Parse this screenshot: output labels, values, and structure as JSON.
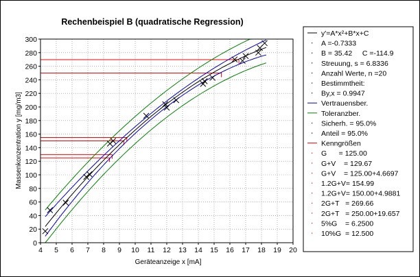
{
  "chart_data": {
    "type": "scatter",
    "title": "Rechenbeispiel B (quadratische Regression)",
    "xlabel": "Geräteanzeige x [mA]",
    "ylabel": "Massenkonzentration y [mg/m3]",
    "xlim": [
      4,
      20
    ],
    "ylim": [
      0,
      300
    ],
    "xticks": [
      4,
      5,
      6,
      7,
      8,
      9,
      10,
      11,
      12,
      13,
      14,
      15,
      16,
      17,
      18,
      19,
      20
    ],
    "yticks": [
      0,
      20,
      40,
      60,
      80,
      100,
      120,
      140,
      160,
      180,
      200,
      220,
      240,
      260,
      280,
      300
    ],
    "grid": true,
    "regression": {
      "A": -0.7333,
      "B": 35.42,
      "C": -114.9,
      "x_range": [
        4.3,
        18.3
      ]
    },
    "confidence_halfwidth": 6.8336,
    "tolerance_halfwidth": 19.657,
    "points": [
      {
        "x": 4.3,
        "y": 17
      },
      {
        "x": 4.6,
        "y": 48
      },
      {
        "x": 5.6,
        "y": 59
      },
      {
        "x": 6.9,
        "y": 97
      },
      {
        "x": 7.1,
        "y": 101
      },
      {
        "x": 8.4,
        "y": 146
      },
      {
        "x": 8.6,
        "y": 150
      },
      {
        "x": 10.7,
        "y": 187
      },
      {
        "x": 11.9,
        "y": 204
      },
      {
        "x": 12.0,
        "y": 199
      },
      {
        "x": 12.6,
        "y": 210
      },
      {
        "x": 14.3,
        "y": 234
      },
      {
        "x": 14.4,
        "y": 238
      },
      {
        "x": 14.9,
        "y": 243
      },
      {
        "x": 16.3,
        "y": 270
      },
      {
        "x": 16.8,
        "y": 268
      },
      {
        "x": 17.0,
        "y": 275
      },
      {
        "x": 17.8,
        "y": 280
      },
      {
        "x": 17.9,
        "y": 287
      },
      {
        "x": 18.2,
        "y": 294
      }
    ],
    "characteristic_levels": [
      {
        "y": 125.0,
        "x": 8.37
      },
      {
        "y": 129.67,
        "x": 8.54
      },
      {
        "y": 150.0,
        "x": 9.28
      },
      {
        "y": 154.99,
        "x": 9.47
      },
      {
        "y": 250.0,
        "x": 15.46
      },
      {
        "y": 269.66,
        "x": 16.57
      }
    ],
    "colors": {
      "regression": "#000000",
      "confidence": "#0000cc",
      "tolerance": "#008000",
      "levels": "#ff0000",
      "grid": "#808080",
      "points": "#000000"
    },
    "legend": {
      "placement": "right",
      "items": [
        {
          "kind": "line",
          "color": "#000000",
          "text": "y'=A*x²+B*x+C"
        },
        {
          "kind": "dot",
          "color": "#000000",
          "text": "A =-0.7333"
        },
        {
          "kind": "dot",
          "color": "#000000",
          "text": "B = 35.42     C =-114.9"
        },
        {
          "kind": "dot",
          "color": "#000000",
          "text": "Streuung, s = 6.8336"
        },
        {
          "kind": "dot",
          "color": "#000000",
          "text": "Anzahl Werte, n =20"
        },
        {
          "kind": "dot",
          "color": "#000000",
          "text": "Bestimmtheit:"
        },
        {
          "kind": "dot",
          "color": "#000000",
          "text": "By,x = 0.9947"
        },
        {
          "kind": "line",
          "color": "#0000cc",
          "text": "Vertrauensber."
        },
        {
          "kind": "line",
          "color": "#008000",
          "text": "Toleranzber."
        },
        {
          "kind": "dot",
          "color": "#000000",
          "text": "Sicherh. = 95.0%"
        },
        {
          "kind": "dot",
          "color": "#000000",
          "text": "Anteil = 95.0%"
        },
        {
          "kind": "line",
          "color": "#ff0000",
          "text": "Kenngrößen"
        },
        {
          "kind": "dot",
          "color": "#ff0000",
          "text": "G      = 125.00"
        },
        {
          "kind": "dot",
          "color": "#ff0000",
          "text": "G+V    = 129.67"
        },
        {
          "kind": "dot",
          "color": "#ff0000",
          "text": "G+V    = 125.00+4.6697"
        },
        {
          "kind": "dot",
          "color": "#ff0000",
          "text": "1.2G+V= 154.99"
        },
        {
          "kind": "dot",
          "color": "#ff0000",
          "text": "1.2G+V= 150.00+4.9881"
        },
        {
          "kind": "dot",
          "color": "#ff0000",
          "text": "2G+T   = 269.66"
        },
        {
          "kind": "dot",
          "color": "#ff0000",
          "text": "2G+T   = 250.00+19.657"
        },
        {
          "kind": "dot",
          "color": "#ff0000",
          "text": "5%G    = 6.2500"
        },
        {
          "kind": "dot",
          "color": "#ff0000",
          "text": "10%G  = 12.500"
        }
      ]
    }
  }
}
